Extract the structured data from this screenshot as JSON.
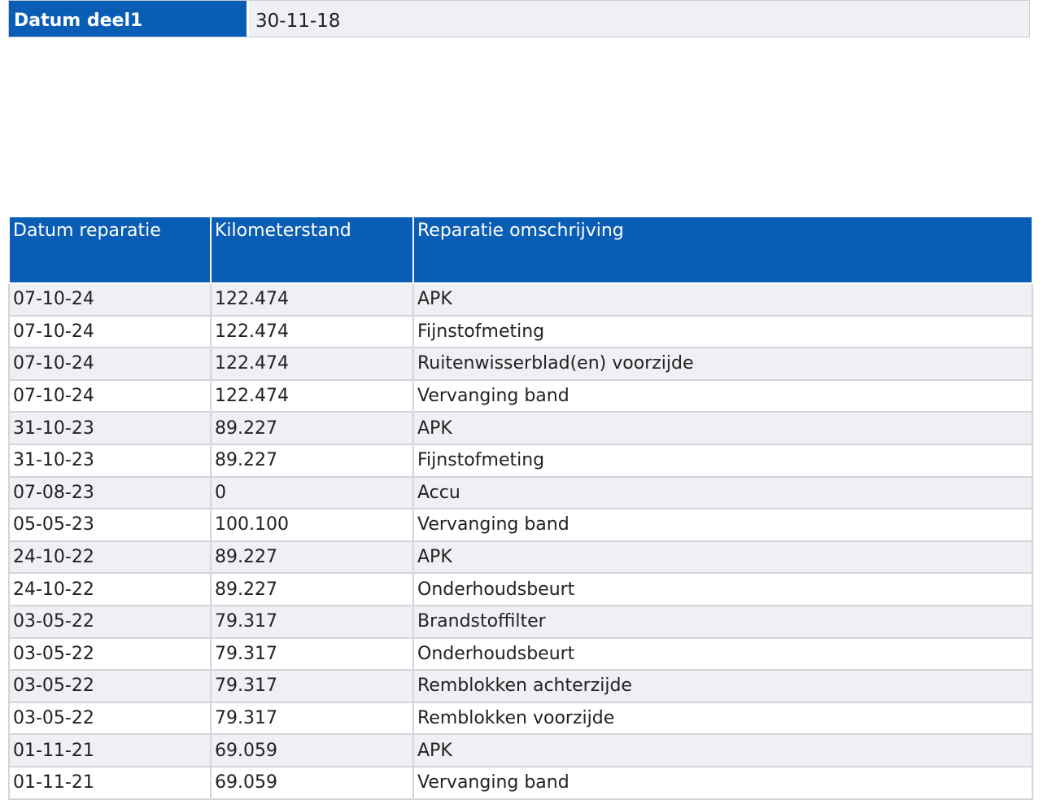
{
  "header": {
    "label": "Datum deel1",
    "value": "30-11-18"
  },
  "table": {
    "columns": [
      "Datum reparatie",
      "Kilometerstand",
      "Reparatie omschrijving"
    ],
    "rows": [
      [
        "07-10-24",
        "122.474",
        "APK"
      ],
      [
        "07-10-24",
        "122.474",
        "Fijnstofmeting"
      ],
      [
        "07-10-24",
        "122.474",
        "Ruitenwisserblad(en) voorzijde"
      ],
      [
        "07-10-24",
        "122.474",
        "Vervanging band"
      ],
      [
        "31-10-23",
        "89.227",
        "APK"
      ],
      [
        "31-10-23",
        "89.227",
        "Fijnstofmeting"
      ],
      [
        "07-08-23",
        "0",
        "Accu"
      ],
      [
        "05-05-23",
        "100.100",
        "Vervanging band"
      ],
      [
        "24-10-22",
        "89.227",
        "APK"
      ],
      [
        "24-10-22",
        "89.227",
        "Onderhoudsbeurt"
      ],
      [
        "03-05-22",
        "79.317",
        "Brandstoffilter"
      ],
      [
        "03-05-22",
        "79.317",
        "Onderhoudsbeurt"
      ],
      [
        "03-05-22",
        "79.317",
        "Remblokken achterzijde"
      ],
      [
        "03-05-22",
        "79.317",
        "Remblokken voorzijde"
      ],
      [
        "01-11-21",
        "69.059",
        "APK"
      ],
      [
        "01-11-21",
        "69.059",
        "Vervanging band"
      ]
    ]
  }
}
